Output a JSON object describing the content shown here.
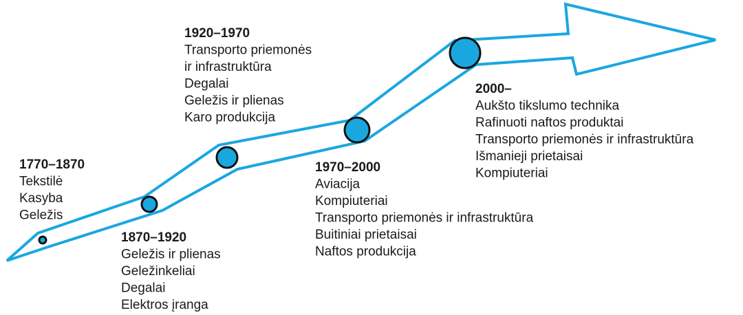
{
  "periods": [
    {
      "years": "1770–1870",
      "items": [
        "Tekstilė",
        "Kasyba",
        "Geležis"
      ]
    },
    {
      "years": "1870–1920",
      "items": [
        "Geležis ir plienas",
        "Geležinkeliai",
        "Degalai",
        "Elektros įranga"
      ]
    },
    {
      "years": "1920–1970",
      "items": [
        "Transporto priemonės",
        "ir infrastruktūra",
        "Degalai",
        "Geležis ir plienas",
        "Karo produkcija"
      ]
    },
    {
      "years": "1970–2000",
      "items": [
        "Aviacija",
        "Kompiuteriai",
        "Transporto priemonės ir infrastruktūra",
        "Buitiniai prietaisai",
        "Naftos produkcija"
      ]
    },
    {
      "years": "2000–",
      "items": [
        "Aukšto tikslumo technika",
        "Rafinuoti naftos produktai",
        "Transporto priemonės ir infrastruktūra",
        "Išmanieji prietaisai",
        "Kompiuteriai"
      ]
    }
  ]
}
